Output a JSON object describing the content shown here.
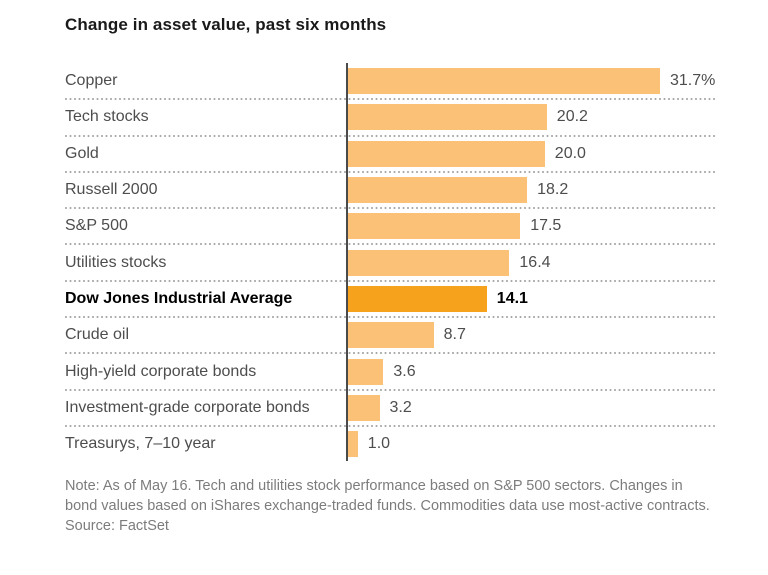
{
  "chart_data": {
    "type": "bar",
    "orientation": "horizontal",
    "title": "Change in asset value, past six months",
    "categories": [
      "Copper",
      "Tech stocks",
      "Gold",
      "Russell 2000",
      "S&P 500",
      "Utilities stocks",
      "Dow Jones Industrial Average",
      "Crude oil",
      "High-yield corporate bonds",
      "Investment-grade corporate bonds",
      "Treasurys, 7–10 year"
    ],
    "values": [
      31.7,
      20.2,
      20.0,
      18.2,
      17.5,
      16.4,
      14.1,
      8.7,
      3.6,
      3.2,
      1.0
    ],
    "value_labels": [
      "31.7%",
      "20.2",
      "20.0",
      "18.2",
      "17.5",
      "16.4",
      "14.1",
      "8.7",
      "3.6",
      "3.2",
      "1.0"
    ],
    "unit": "percent",
    "highlighted_category": "Dow Jones Industrial Average",
    "highlight_index": 6,
    "xlim": [
      0,
      37.2
    ],
    "grid": "dotted-row-separators",
    "legend": "none",
    "colors": {
      "bar": "#fbc177",
      "bar_highlight": "#f6a21d",
      "axis_line": "#4a4a4a",
      "separator_dots": "#a8a8a8",
      "category_text": "#4d4d4d",
      "value_text": "#4d4d4d",
      "highlight_text": "#000000",
      "title_text": "#1a1a1a",
      "note_text": "#7c7c7c"
    }
  },
  "footer": {
    "note": "Note: As of May 16. Tech and utilities stock performance based on S&P 500 sectors. Changes in bond values based on iShares exchange-traded funds. Commodities data use most-active contracts.",
    "source": "Source: FactSet"
  }
}
